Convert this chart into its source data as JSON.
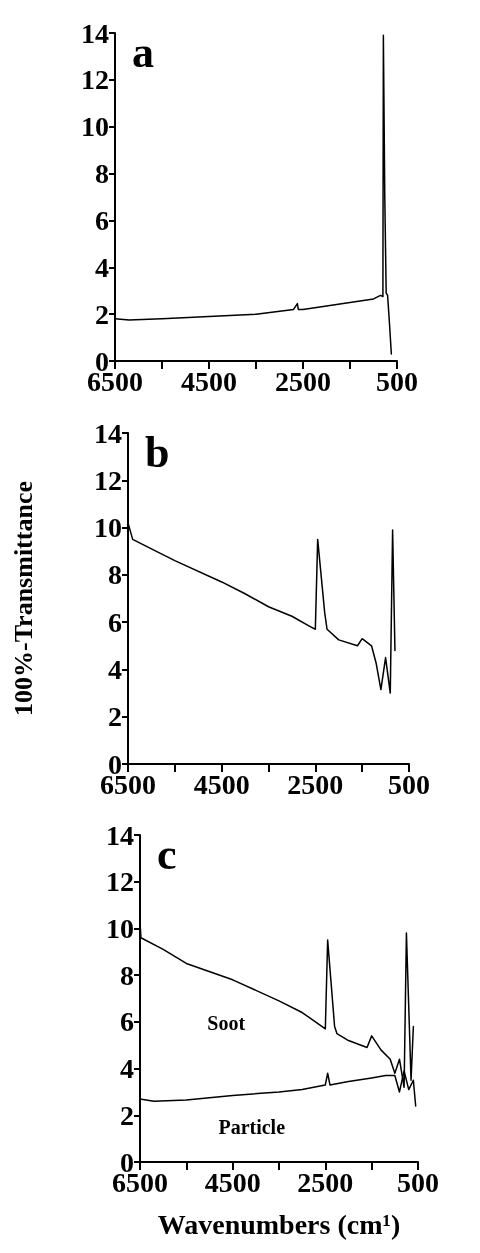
{
  "chart_data": [
    {
      "type": "line",
      "title": "a",
      "xlim": [
        6500,
        500
      ],
      "ylim": [
        0,
        14
      ],
      "marker": "none",
      "line_style": "solid",
      "xticks": [
        6500,
        {
          "value": 5500,
          "label": null
        },
        4500,
        {
          "value": 3500,
          "label": null
        },
        2500,
        {
          "value": 1500,
          "label": null
        },
        500
      ],
      "yticks": [
        0,
        2,
        4,
        6,
        8,
        10,
        12,
        14
      ],
      "series": [
        {
          "color": "#000000",
          "x": [
            6500,
            6200,
            5500,
            4500,
            3500,
            2700,
            2620,
            2600,
            2500,
            2000,
            1500,
            1000,
            850,
            800,
            790,
            760,
            730,
            700,
            660,
            620
          ],
          "values": [
            1.8,
            1.75,
            1.8,
            1.9,
            2.0,
            2.2,
            2.45,
            2.2,
            2.2,
            2.35,
            2.5,
            2.65,
            2.8,
            2.75,
            13.9,
            7,
            2.9,
            2.8,
            1.6,
            0.3
          ]
        }
      ]
    },
    {
      "type": "line",
      "title": "b",
      "ylabel": "100%-Transmittance",
      "xlim": [
        6500,
        500
      ],
      "ylim": [
        0,
        14
      ],
      "marker": "none",
      "line_style": "solid",
      "xticks": [
        6500,
        {
          "value": 5500,
          "label": null
        },
        4500,
        {
          "value": 3500,
          "label": null
        },
        2500,
        {
          "value": 1500,
          "label": null
        },
        500
      ],
      "yticks": [
        0,
        2,
        4,
        6,
        8,
        10,
        12,
        14
      ],
      "series": [
        {
          "color": "#000000",
          "x": [
            6500,
            6400,
            6000,
            5500,
            4500,
            4000,
            3500,
            3000,
            2600,
            2500,
            2450,
            2300,
            2250,
            2000,
            1600,
            1500,
            1300,
            1200,
            1100,
            1000,
            900,
            850,
            800
          ],
          "values": [
            10.2,
            9.5,
            9.1,
            8.6,
            7.7,
            7.2,
            6.65,
            6.25,
            5.8,
            5.7,
            9.5,
            6.4,
            5.7,
            5.25,
            5.0,
            5.3,
            5.0,
            4.25,
            3.15,
            4.5,
            3.0,
            9.9,
            4.8
          ]
        }
      ]
    },
    {
      "type": "line",
      "title": "c",
      "xlabel": "Wavenumbers (cm¹)",
      "xlim": [
        6500,
        500
      ],
      "ylim": [
        0,
        14
      ],
      "marker": "none",
      "line_style": "solid",
      "xticks": [
        6500,
        {
          "value": 5500,
          "label": null
        },
        4500,
        {
          "value": 3500,
          "label": null
        },
        2500,
        {
          "value": 1500,
          "label": null
        },
        500
      ],
      "yticks": [
        0,
        2,
        4,
        6,
        8,
        10,
        12,
        14
      ],
      "series": [
        {
          "name": "Soot",
          "color": "#000000",
          "x": [
            6500,
            6480,
            6000,
            5500,
            4500,
            3500,
            3000,
            2500,
            2450,
            2300,
            2250,
            2000,
            1600,
            1500,
            1300,
            1100,
            1000,
            900,
            800,
            750,
            650,
            600
          ],
          "values": [
            10.3,
            9.6,
            9.1,
            8.5,
            7.8,
            6.9,
            6.4,
            5.7,
            9.5,
            5.8,
            5.5,
            5.2,
            4.9,
            5.4,
            4.8,
            4.4,
            3.8,
            4.4,
            3.2,
            9.8,
            3.5,
            5.8
          ]
        },
        {
          "name": "Particle",
          "color": "#000000",
          "x": [
            6500,
            6200,
            5500,
            4500,
            3500,
            3000,
            2500,
            2450,
            2400,
            2000,
            1500,
            1200,
            1000,
            900,
            800,
            700,
            600,
            550
          ],
          "values": [
            2.7,
            2.6,
            2.65,
            2.85,
            3.0,
            3.1,
            3.3,
            3.8,
            3.3,
            3.45,
            3.6,
            3.7,
            3.7,
            3.0,
            3.9,
            3.1,
            3.5,
            2.4
          ]
        }
      ]
    }
  ]
}
